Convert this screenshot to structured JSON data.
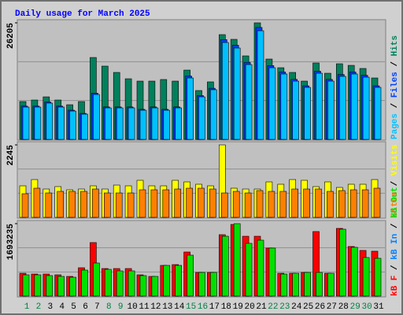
{
  "chart_data": [
    {
      "type": "bar",
      "title": "Daily usage for March 2025",
      "title_color": "#0000ff",
      "ylim": [
        0,
        26205
      ],
      "yticks": [
        26205
      ],
      "grid": true,
      "legend_separator": " / ",
      "draw_reverse": true,
      "series": [
        {
          "name": "Pages",
          "color": "#00c0ff",
          "values": [
            7260,
            7260,
            8150,
            7260,
            6370,
            5670,
            10090,
            7080,
            7080,
            7080,
            6550,
            7080,
            6550,
            7080,
            13810,
            9560,
            11160,
            21780,
            20540,
            16820,
            24430,
            16110,
            14700,
            13100,
            11690,
            14870,
            13100,
            14170,
            14700,
            13990,
            11690
          ]
        },
        {
          "name": "Files",
          "color": "#0040ff",
          "values": [
            7480,
            7480,
            8390,
            7480,
            6560,
            5840,
            10390,
            7290,
            7290,
            7290,
            6750,
            7290,
            6750,
            7290,
            14220,
            9850,
            11490,
            22430,
            21160,
            17320,
            25160,
            16590,
            15140,
            13490,
            12040,
            15320,
            13490,
            14590,
            15140,
            14410,
            12040
          ]
        },
        {
          "name": "Hits",
          "color": "#00805c",
          "values": [
            8500,
            8850,
            9560,
            8850,
            7790,
            8500,
            18410,
            16470,
            15050,
            13630,
            13100,
            13100,
            13460,
            13100,
            15580,
            10980,
            12930,
            23550,
            22490,
            18770,
            26205,
            18060,
            16110,
            15050,
            13100,
            17180,
            14870,
            17000,
            16640,
            15940,
            13810
          ]
        }
      ]
    },
    {
      "type": "bar",
      "ylim": [
        0,
        2245
      ],
      "yticks": [
        2245
      ],
      "grid": true,
      "legend_separator": " / ",
      "draw_reverse": true,
      "series": [
        {
          "name": "Sites",
          "color": "#ff8000",
          "values": [
            732,
            903,
            756,
            805,
            805,
            805,
            878,
            756,
            756,
            756,
            854,
            854,
            854,
            878,
            903,
            903,
            878,
            756,
            805,
            756,
            830,
            805,
            805,
            878,
            878,
            878,
            805,
            830,
            854,
            854,
            903
          ]
        },
        {
          "name": "Visits",
          "color": "#ffff00",
          "values": [
            976,
            1171,
            878,
            952,
            854,
            878,
            976,
            878,
            1000,
            976,
            1147,
            976,
            976,
            1147,
            1098,
            1025,
            976,
            2245,
            903,
            878,
            878,
            1098,
            1025,
            1171,
            1147,
            952,
            1098,
            927,
            1025,
            1025,
            1171
          ]
        }
      ]
    },
    {
      "type": "bar",
      "ylim": [
        0,
        1693235
      ],
      "yticks": [
        1693235
      ],
      "grid": true,
      "legend_separator": " / ",
      "draw_reverse": false,
      "categories": [
        "1",
        "2",
        "3",
        "4",
        "5",
        "6",
        "7",
        "8",
        "9",
        "10",
        "11",
        "12",
        "13",
        "14",
        "15",
        "16",
        "17",
        "18",
        "19",
        "20",
        "21",
        "22",
        "23",
        "24",
        "25",
        "26",
        "27",
        "28",
        "29",
        "30",
        "31"
      ],
      "label_colors": [
        "#008040",
        "#008040",
        "#000000",
        "#000000",
        "#000000",
        "#000000",
        "#000000",
        "#008040",
        "#008040",
        "#000000",
        "#000000",
        "#000000",
        "#000000",
        "#000000",
        "#008040",
        "#008040",
        "#000000",
        "#000000",
        "#000000",
        "#000000",
        "#000000",
        "#008040",
        "#008040",
        "#000000",
        "#000000",
        "#000000",
        "#000000",
        "#000000",
        "#008040",
        "#008040",
        "#000000"
      ],
      "series": [
        {
          "name": "kB F",
          "color": "#ff0000",
          "values": [
            533700,
            515300,
            515300,
            496900,
            460100,
            662600,
            1251500,
            644200,
            644200,
            644200,
            496900,
            460100,
            717800,
            736200,
            1030700,
            552200,
            552200,
            1435600,
            1675000,
            1398800,
            1398800,
            1122700,
            533700,
            533700,
            552200,
            1509200,
            533700,
            1582800,
            1159500,
            1067500,
            1049100
          ]
        },
        {
          "name": "kB In",
          "color": "#0080ff",
          "values": [
            0,
            0,
            0,
            0,
            0,
            0,
            0,
            0,
            0,
            0,
            0,
            0,
            0,
            0,
            0,
            0,
            0,
            0,
            0,
            0,
            0,
            0,
            0,
            0,
            0,
            0,
            0,
            0,
            0,
            0,
            0
          ]
        },
        {
          "name": "kB Out",
          "color": "#00e000",
          "values": [
            496900,
            496900,
            478500,
            460100,
            441700,
            607400,
            773000,
            625800,
            589000,
            589000,
            478500,
            460100,
            717800,
            717800,
            957100,
            552200,
            552200,
            1398800,
            1693235,
            1233100,
            1306800,
            1122700,
            515300,
            533700,
            552200,
            552200,
            533700,
            1564400,
            1141100,
            901800,
            883400
          ]
        }
      ]
    }
  ]
}
